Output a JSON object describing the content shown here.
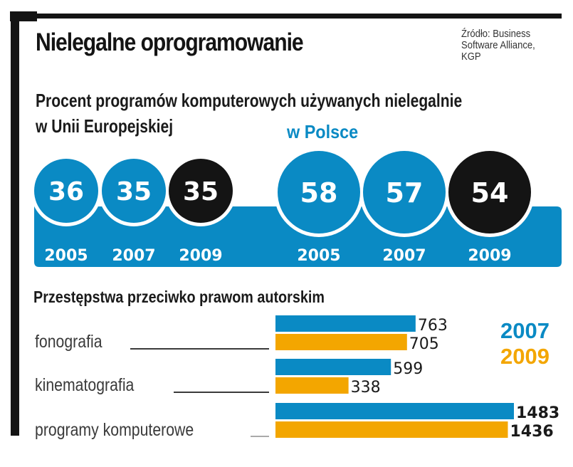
{
  "title": "Nielegalne oprogramowanie",
  "source": [
    "Źródło: Business",
    "Software Alliance,",
    "KGP"
  ],
  "colors": {
    "blue": "#0a8ac4",
    "black": "#141414",
    "orange": "#f3a600",
    "text": "#1a1a1a"
  },
  "chart_data": [
    {
      "type": "table",
      "title": "Procent programów komputerowych używanych nielegalnie",
      "subtitle_eu": "w Unii Europejskiej",
      "subtitle_pl": "w Polsce",
      "unit": "%",
      "groups": [
        {
          "name": "w Unii Europejskiej",
          "years": [
            "2005",
            "2007",
            "2009"
          ],
          "values": [
            36,
            35,
            35
          ],
          "highlight_last": true
        },
        {
          "name": "w Polsce",
          "years": [
            "2005",
            "2007",
            "2009"
          ],
          "values": [
            58,
            57,
            54
          ],
          "highlight_last": true
        }
      ]
    },
    {
      "type": "bar",
      "orientation": "horizontal",
      "title": "Przestępstwa przeciwko prawom autorskim",
      "categories": [
        "fonografia",
        "kinematografia",
        "programy komputerowe"
      ],
      "series": [
        {
          "name": "2007",
          "color": "#0a8ac4",
          "values": [
            763,
            599,
            1483
          ]
        },
        {
          "name": "2009",
          "color": "#f3a600",
          "values": [
            705,
            338,
            1436
          ]
        }
      ],
      "legend": "right",
      "xlabel": "",
      "ylabel": ""
    }
  ]
}
